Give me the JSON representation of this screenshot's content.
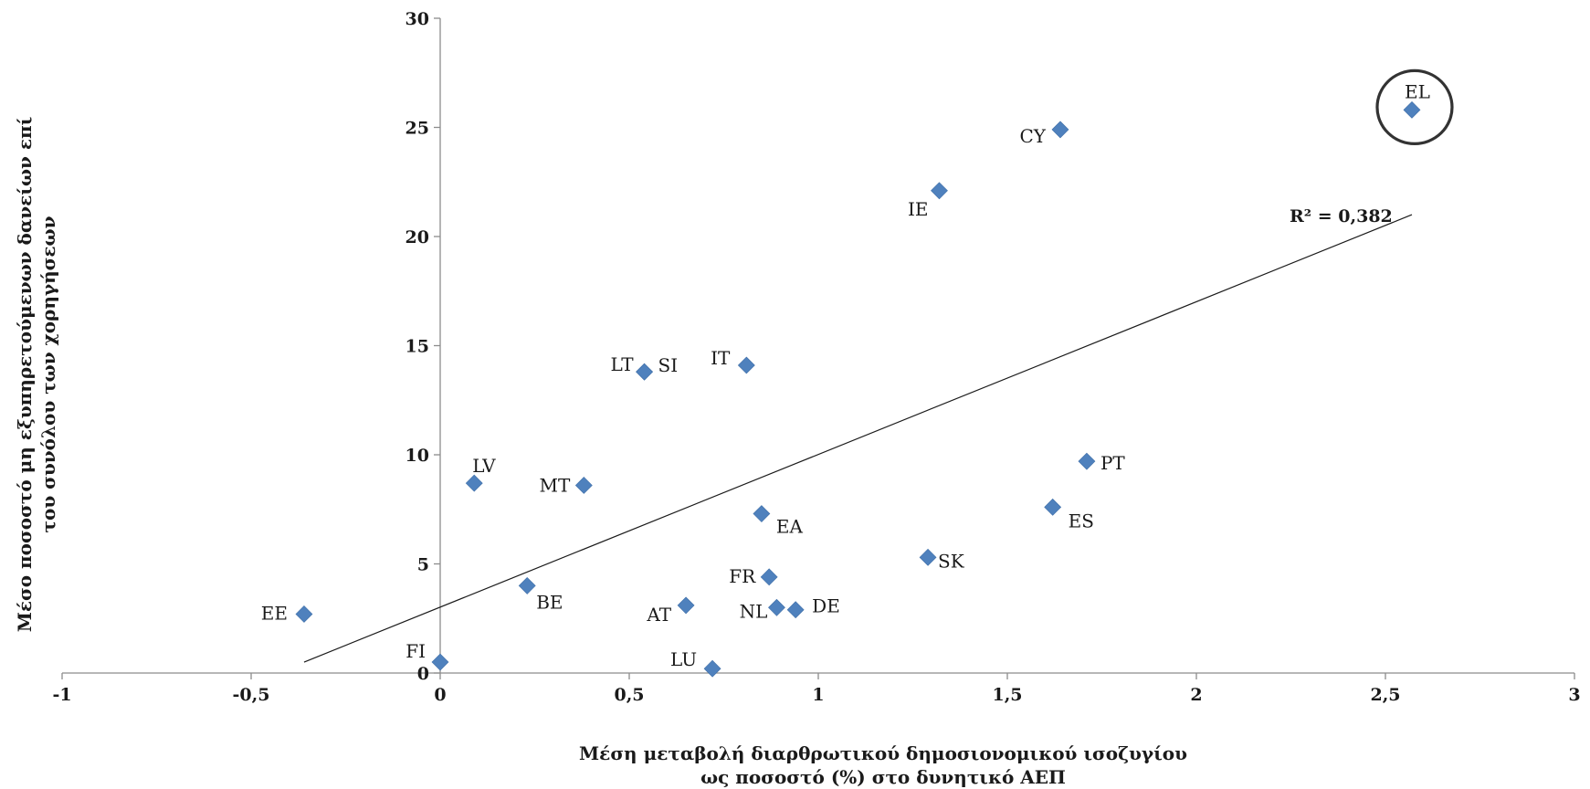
{
  "chart_data": {
    "type": "scatter",
    "title": "",
    "xlabel_lines": [
      "Μέση  μεταβολή  διαρθρωτικού  δημοσιονομικού ισοζυγίου",
      "ως ποσοστό (%) στο δυνητικό ΑΕΠ"
    ],
    "ylabel_lines": [
      "Μέσο ποσοστό μη εξυπηρετούμενων δανείων επί",
      "του συνόλου των χορηγήσεων"
    ],
    "xlim": [
      -1,
      3
    ],
    "ylim": [
      0,
      30
    ],
    "x_ticks": [
      -1,
      -0.5,
      0,
      0.5,
      1,
      1.5,
      2,
      2.5,
      3
    ],
    "x_tick_labels": [
      "-1",
      "-0,5",
      "0",
      "0,5",
      "1",
      "1,5",
      "2",
      "2,5",
      "3"
    ],
    "y_ticks": [
      0,
      5,
      10,
      15,
      20,
      25,
      30
    ],
    "y_tick_labels": [
      "0",
      "5",
      "10",
      "15",
      "20",
      "25",
      "30"
    ],
    "grid": false,
    "legend": "none",
    "marker_color": "#4f81bd",
    "points": [
      {
        "label": "EL",
        "x": 2.57,
        "y": 25.8,
        "highlighted": true
      },
      {
        "label": "CY",
        "x": 1.64,
        "y": 24.9
      },
      {
        "label": "IE",
        "x": 1.32,
        "y": 22.1
      },
      {
        "label": "IT",
        "x": 0.81,
        "y": 14.1
      },
      {
        "label": "LT",
        "x": 0.54,
        "y": 13.8
      },
      {
        "label": "SI",
        "x": 0.54,
        "y": 13.8
      },
      {
        "label": "PT",
        "x": 1.71,
        "y": 9.7
      },
      {
        "label": "LV",
        "x": 0.09,
        "y": 8.7
      },
      {
        "label": "MT",
        "x": 0.38,
        "y": 8.6
      },
      {
        "label": "ES",
        "x": 1.62,
        "y": 7.6
      },
      {
        "label": "EA",
        "x": 0.85,
        "y": 7.3
      },
      {
        "label": "SK",
        "x": 1.29,
        "y": 5.3
      },
      {
        "label": "FR",
        "x": 0.87,
        "y": 4.4
      },
      {
        "label": "BE",
        "x": 0.23,
        "y": 4.0
      },
      {
        "label": "AT",
        "x": 0.65,
        "y": 3.1
      },
      {
        "label": "NL",
        "x": 0.89,
        "y": 3.0
      },
      {
        "label": "DE",
        "x": 0.94,
        "y": 2.9
      },
      {
        "label": "EE",
        "x": -0.36,
        "y": 2.7
      },
      {
        "label": "FI",
        "x": 0.0,
        "y": 0.5
      },
      {
        "label": "LU",
        "x": 0.72,
        "y": 0.2
      }
    ],
    "trendline": {
      "type": "linear",
      "from": {
        "x": -0.36,
        "y": 0.5
      },
      "to": {
        "x": 2.57,
        "y": 21.0
      },
      "r2_label": "R² = 0,382"
    }
  }
}
